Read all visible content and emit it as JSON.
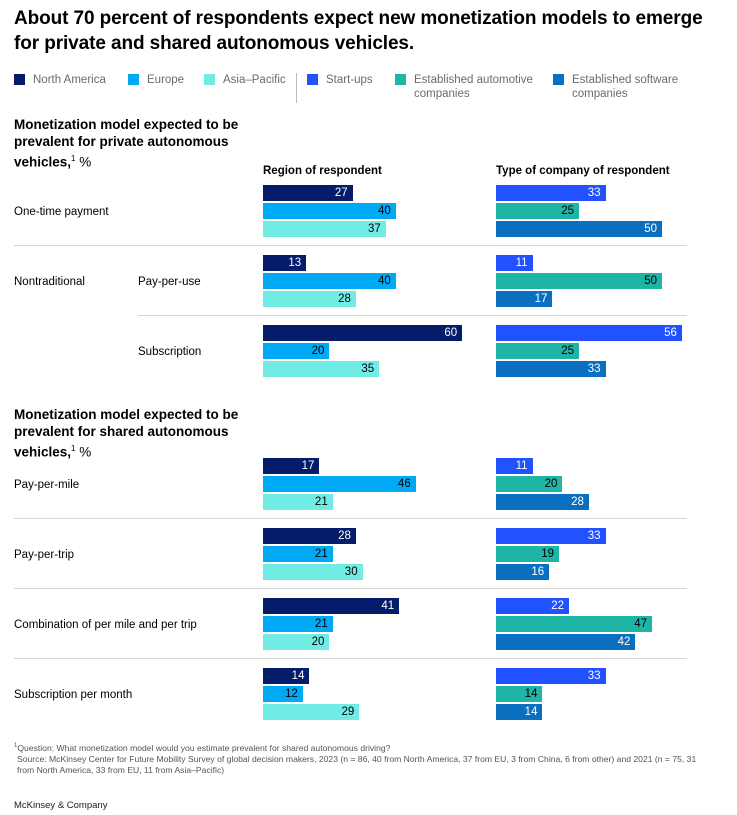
{
  "title": "About 70 percent of respondents expect new monetization models to emerge for private and shared autonomous vehicles.",
  "legend": [
    {
      "label": "North America",
      "color": "#051c6b"
    },
    {
      "label": "Europe",
      "color": "#00a9f4"
    },
    {
      "label": "Asia–Pacific",
      "color": "#71ece4"
    },
    {
      "label": "Start-ups",
      "color": "#2251ff"
    },
    {
      "label": "Established automotive companies",
      "color": "#1eb5a6"
    },
    {
      "label": "Established software companies",
      "color": "#0a6fbf"
    }
  ],
  "colors": {
    "north_america": "#051c6b",
    "europe": "#00a9f4",
    "asia_pacific": "#71ece4",
    "startups": "#2251ff",
    "automotive": "#1eb5a6",
    "software": "#0a6fbf",
    "label_light": "#ffffff",
    "label_dark": "#000000"
  },
  "column_headers": {
    "region": "Region of respondent",
    "company": "Type of company of respondent"
  },
  "sections": [
    {
      "title": "Monetization model expected to be prevalent for private autonomous vehicles,",
      "footnote_mark": "1",
      "unit": " %"
    },
    {
      "title": "Monetization model expected to be prevalent for shared autonomous vehicles,",
      "footnote_mark": "1",
      "unit": " %"
    }
  ],
  "group_label": "Nontraditional",
  "chart_data": {
    "type": "bar",
    "orientation": "horizontal",
    "title": "About 70 percent of respondents expect new monetization models to emerge for private and shared autonomous vehicles.",
    "unit": "%",
    "series": [
      {
        "name": "North America",
        "panel": "Region of respondent"
      },
      {
        "name": "Europe",
        "panel": "Region of respondent"
      },
      {
        "name": "Asia–Pacific",
        "panel": "Region of respondent"
      },
      {
        "name": "Start-ups",
        "panel": "Type of company of respondent"
      },
      {
        "name": "Established automotive companies",
        "panel": "Type of company of respondent"
      },
      {
        "name": "Established software companies",
        "panel": "Type of company of respondent"
      }
    ],
    "rows": [
      {
        "section": "private",
        "label": "One-time payment",
        "region": [
          27,
          40,
          37
        ],
        "company": [
          33,
          25,
          50
        ]
      },
      {
        "section": "private",
        "group": "Nontraditional",
        "label": "Pay-per-use",
        "region": [
          13,
          40,
          28
        ],
        "company": [
          11,
          50,
          17
        ]
      },
      {
        "section": "private",
        "group": "Nontraditional",
        "label": "Subscription",
        "region": [
          60,
          20,
          35
        ],
        "company": [
          56,
          25,
          33
        ]
      },
      {
        "section": "shared",
        "label": "Pay-per-mile",
        "region": [
          17,
          46,
          21
        ],
        "company": [
          11,
          20,
          28
        ]
      },
      {
        "section": "shared",
        "label": "Pay-per-trip",
        "region": [
          28,
          21,
          30
        ],
        "company": [
          33,
          19,
          16
        ]
      },
      {
        "section": "shared",
        "label": "Combination of per mile and per trip",
        "region": [
          41,
          21,
          20
        ],
        "company": [
          22,
          47,
          42
        ]
      },
      {
        "section": "shared",
        "label": "Subscription per month",
        "region": [
          14,
          12,
          29
        ],
        "company": [
          33,
          14,
          14
        ]
      }
    ],
    "xlim": [
      0,
      60
    ]
  },
  "footnote": {
    "mark": "1",
    "question": "Question: What monetization model would you estimate prevalent for shared autonomous driving?",
    "source": "Source: McKinsey Center for Future Mobility Survey of global decision makers, 2023 (n = 86, 40 from North America, 37 from EU, 3 from China, 6 from other) and 2021 (n = 75, 31 from North America, 33 from EU, 11 from Asia–Pacific)"
  },
  "brand": "McKinsey & Company"
}
